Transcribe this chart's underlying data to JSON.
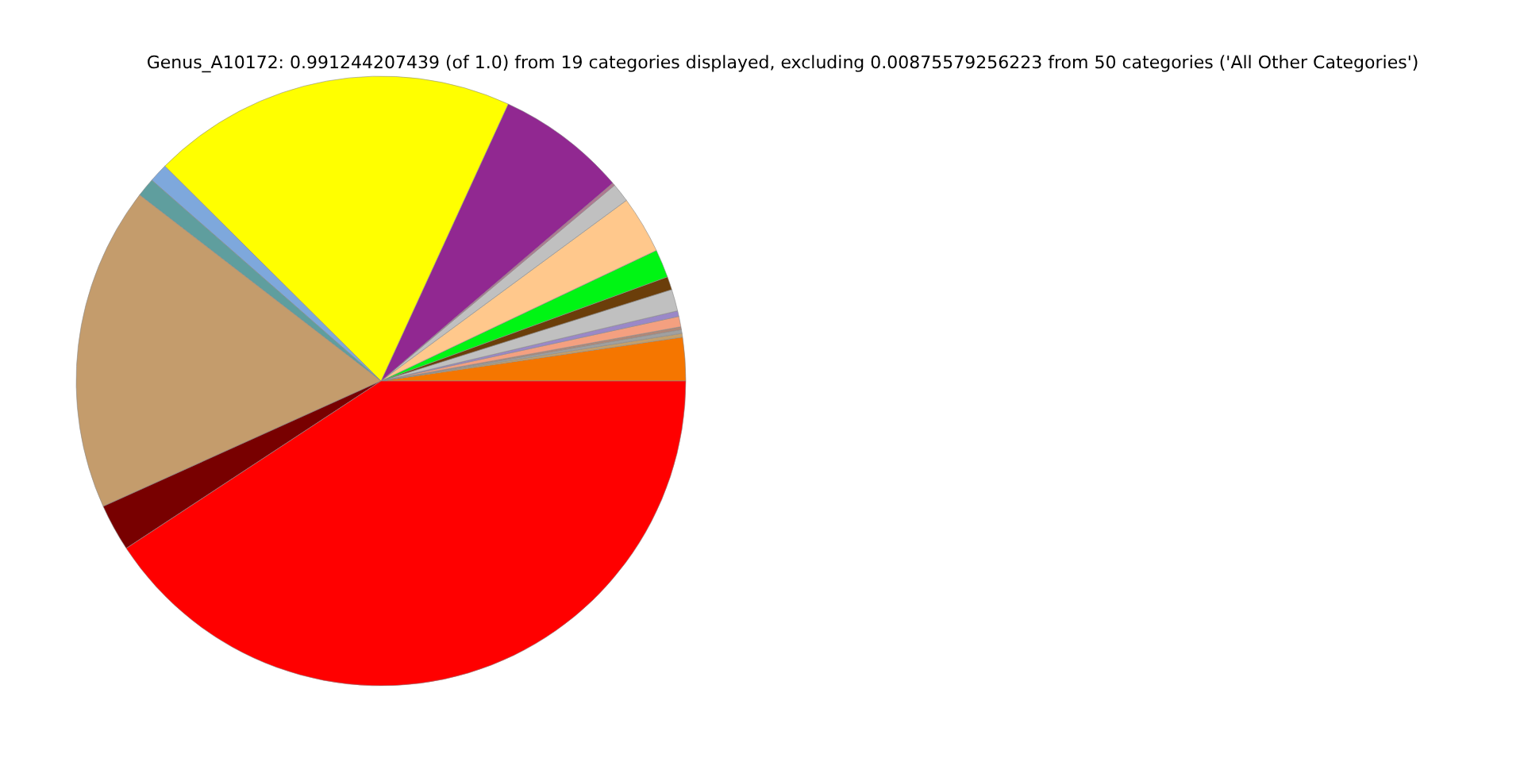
{
  "chart_data": {
    "type": "pie",
    "title": "Genus_A10172: 0.991244207439 (of 1.0) from 19 categories displayed, excluding 0.00875579256223 from 50 categories ('All Other Categories')",
    "categories": [
      null,
      null,
      null,
      null,
      null,
      null,
      null,
      null,
      null,
      null,
      null,
      null,
      null,
      null,
      null,
      null,
      null,
      null,
      null
    ],
    "values": [
      2.3,
      0.2,
      0.2,
      0.15,
      0.55,
      0.3,
      1.15,
      0.7,
      1.5,
      3.05,
      1,
      0.15,
      6.9,
      19.4,
      1,
      1,
      17.2,
      2.5,
      40.75
    ],
    "colors": [
      "#f57600",
      "#c4a06c",
      "#a0a0a0",
      "#b08878",
      "#f4a080",
      "#9a88c8",
      "#c0c0c0",
      "#6b3e0a",
      "#00f514",
      "#ffc88c",
      "#c0c0c0",
      "#b07890",
      "#912891",
      "#ffff00",
      "#7ea8dc",
      "#5f9e9e",
      "#c49c6c",
      "#780000",
      "#ff0000"
    ],
    "legend": false
  }
}
